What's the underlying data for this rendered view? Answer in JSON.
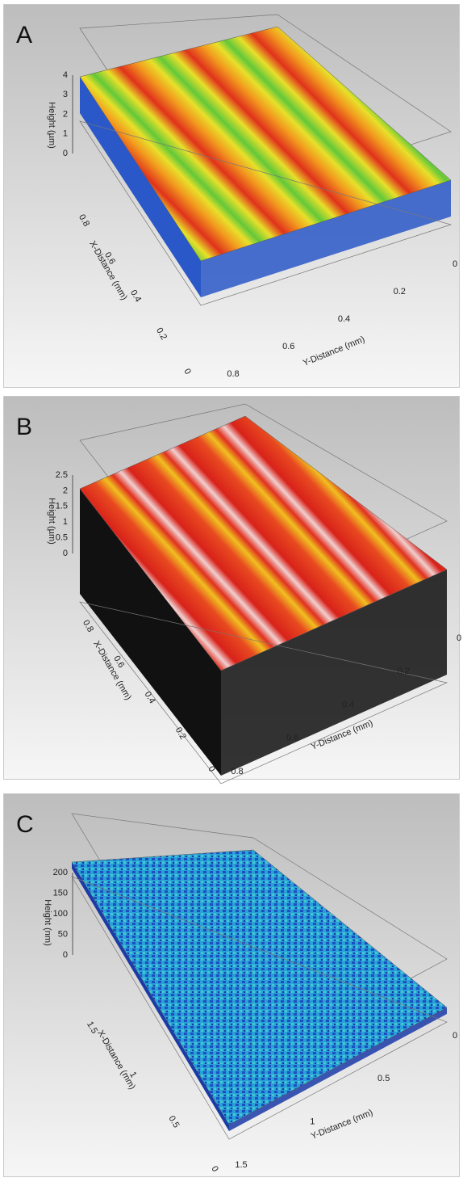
{
  "panels": [
    {
      "label": "A",
      "z_axis_title": "Height (µm)",
      "z_ticks": [
        "0",
        "1",
        "2",
        "3",
        "4"
      ],
      "x_axis_title": "X-Distance (mm)",
      "x_ticks": [
        "0",
        "0.2",
        "0.4",
        "0.6",
        "0.8"
      ],
      "y_axis_title": "Y-Distance (mm)",
      "y_ticks": [
        "0.8",
        "0.6",
        "0.4",
        "0.2",
        "0"
      ]
    },
    {
      "label": "B",
      "z_axis_title": "Height (µm)",
      "z_ticks": [
        "0",
        "0.5",
        "1",
        "1.5",
        "2",
        "2.5"
      ],
      "x_axis_title": "X-Distance (mm)",
      "x_ticks": [
        "0",
        "0.2",
        "0.4",
        "0.6",
        "0.8"
      ],
      "y_axis_title": "Y-Distance (mm)",
      "y_ticks": [
        "0.8",
        "0.6",
        "0.4",
        "0.2",
        "0"
      ]
    },
    {
      "label": "C",
      "z_axis_title": "Height (nm)",
      "z_ticks": [
        "0",
        "50",
        "100",
        "150",
        "200"
      ],
      "x_axis_title": "X-Distance (mm)",
      "x_ticks": [
        "0",
        "0.5",
        "1",
        "1.5"
      ],
      "y_axis_title": "Y-Distance (mm)",
      "y_ticks": [
        "1.5",
        "1",
        "0.5",
        "0"
      ]
    }
  ]
}
